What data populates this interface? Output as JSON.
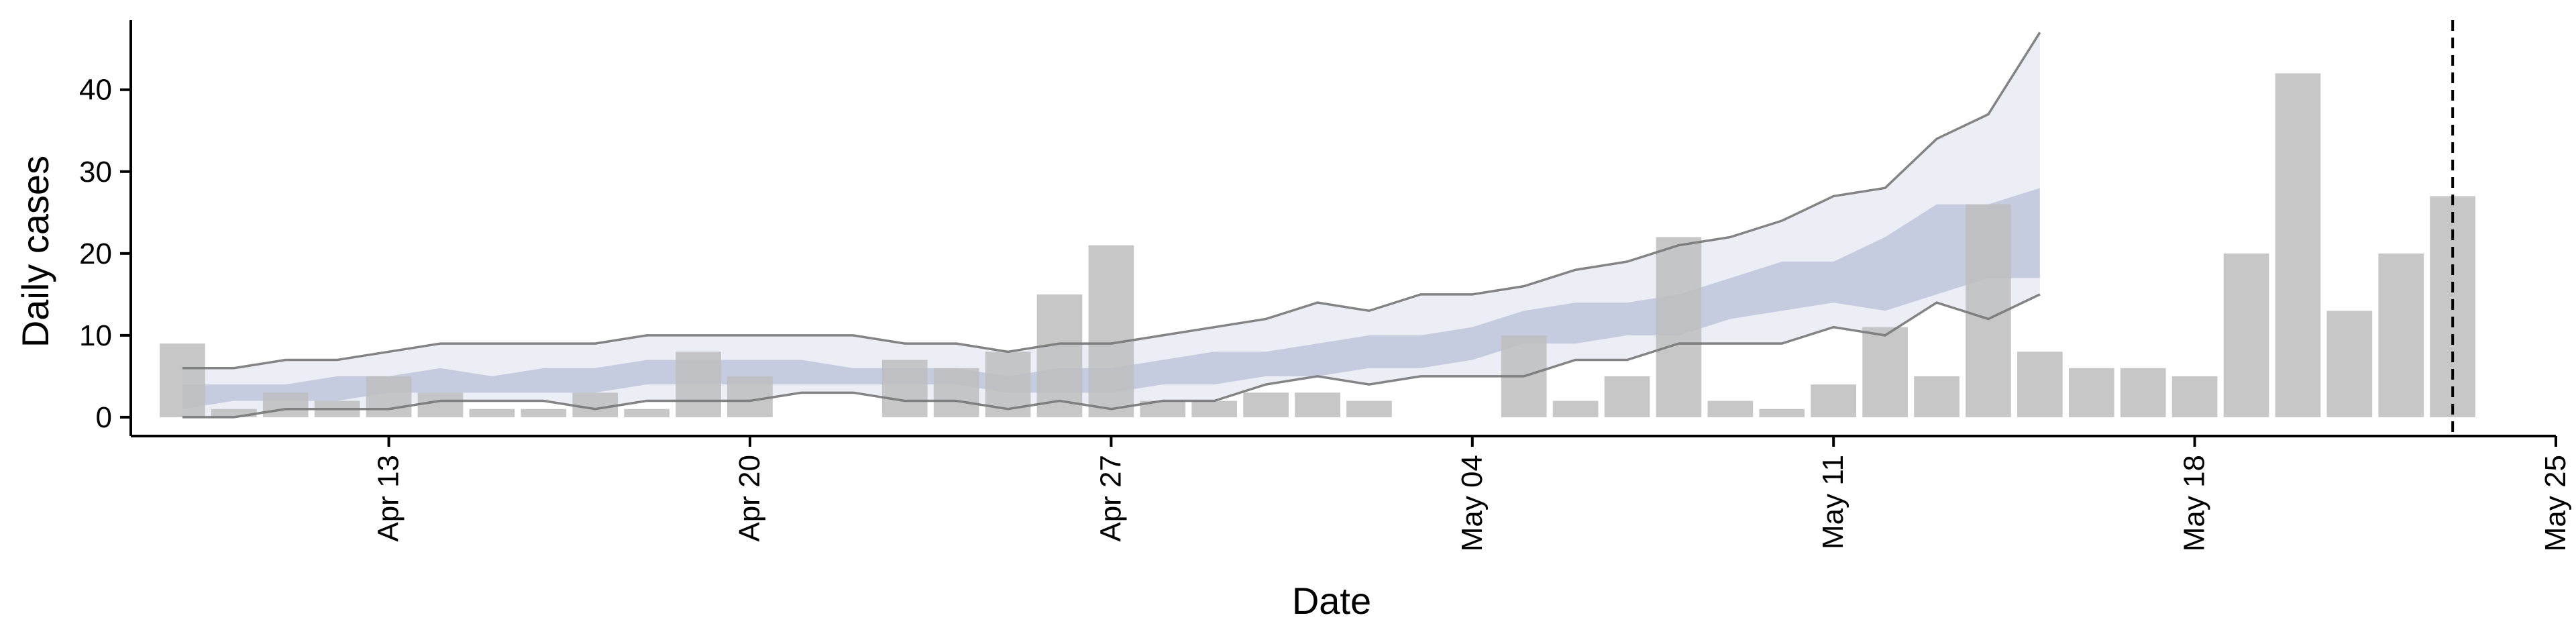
{
  "chart_data": {
    "type": "bar",
    "title": "",
    "xlabel": "Date",
    "ylabel": "Daily cases",
    "ylim": [
      0,
      50
    ],
    "xlim": [
      "2020-04-08",
      "2020-05-25"
    ],
    "x_tick_labels": [
      "Apr 13",
      "Apr 20",
      "Apr 27",
      "May 04",
      "May 11",
      "May 18",
      "May 25"
    ],
    "x_tick_dates": [
      "2020-04-13",
      "2020-04-20",
      "2020-04-27",
      "2020-05-04",
      "2020-05-11",
      "2020-05-18",
      "2020-05-25"
    ],
    "y_ticks": [
      0,
      10,
      20,
      30,
      40
    ],
    "grid": false,
    "bars": {
      "color": "#bdbdbd",
      "dates": [
        "2020-04-09",
        "2020-04-10",
        "2020-04-11",
        "2020-04-12",
        "2020-04-13",
        "2020-04-14",
        "2020-04-15",
        "2020-04-16",
        "2020-04-17",
        "2020-04-18",
        "2020-04-19",
        "2020-04-20",
        "2020-04-21",
        "2020-04-22",
        "2020-04-23",
        "2020-04-24",
        "2020-04-25",
        "2020-04-26",
        "2020-04-27",
        "2020-04-28",
        "2020-04-29",
        "2020-04-30",
        "2020-05-01",
        "2020-05-02",
        "2020-05-03",
        "2020-05-04",
        "2020-05-05",
        "2020-05-06",
        "2020-05-07",
        "2020-05-08",
        "2020-05-09",
        "2020-05-10",
        "2020-05-11",
        "2020-05-12",
        "2020-05-13",
        "2020-05-14",
        "2020-05-15",
        "2020-05-16",
        "2020-05-17",
        "2020-05-18",
        "2020-05-19",
        "2020-05-20",
        "2020-05-21",
        "2020-05-22",
        "2020-05-23"
      ],
      "values": [
        9,
        1,
        3,
        2,
        5,
        3,
        1,
        1,
        3,
        1,
        8,
        5,
        0,
        0,
        7,
        6,
        8,
        15,
        21,
        2,
        2,
        3,
        3,
        2,
        0,
        0,
        10,
        2,
        5,
        22,
        2,
        1,
        4,
        11,
        5,
        26,
        8,
        6,
        6,
        5,
        20,
        42,
        13,
        20,
        27
      ]
    },
    "bands": {
      "color": "#8895be",
      "dates": [
        "2020-04-09",
        "2020-04-10",
        "2020-04-11",
        "2020-04-12",
        "2020-04-13",
        "2020-04-14",
        "2020-04-15",
        "2020-04-16",
        "2020-04-17",
        "2020-04-18",
        "2020-04-19",
        "2020-04-20",
        "2020-04-21",
        "2020-04-22",
        "2020-04-23",
        "2020-04-24",
        "2020-04-25",
        "2020-04-26",
        "2020-04-27",
        "2020-04-28",
        "2020-04-29",
        "2020-04-30",
        "2020-05-01",
        "2020-05-02",
        "2020-05-03",
        "2020-05-04",
        "2020-05-05",
        "2020-05-06",
        "2020-05-07",
        "2020-05-08",
        "2020-05-09",
        "2020-05-10",
        "2020-05-11",
        "2020-05-12",
        "2020-05-13",
        "2020-05-14",
        "2020-05-15"
      ],
      "outer_upper": [
        6,
        6,
        7,
        7,
        8,
        9,
        9,
        9,
        9,
        10,
        10,
        10,
        10,
        10,
        9,
        9,
        8,
        9,
        9,
        10,
        11,
        12,
        14,
        13,
        15,
        15,
        16,
        18,
        19,
        21,
        22,
        24,
        27,
        28,
        34,
        37,
        47
      ],
      "outer_lower": [
        0,
        0,
        1,
        1,
        1,
        2,
        2,
        2,
        1,
        2,
        2,
        2,
        3,
        3,
        2,
        2,
        1,
        2,
        1,
        2,
        2,
        4,
        5,
        4,
        5,
        5,
        5,
        7,
        7,
        9,
        9,
        9,
        11,
        10,
        14,
        12,
        15
      ],
      "inner_upper": [
        4,
        4,
        4,
        5,
        5,
        6,
        5,
        6,
        6,
        7,
        7,
        7,
        7,
        6,
        6,
        6,
        5,
        6,
        6,
        7,
        8,
        8,
        9,
        10,
        10,
        11,
        13,
        14,
        14,
        15,
        17,
        19,
        19,
        22,
        26,
        26,
        28
      ],
      "inner_lower": [
        1,
        2,
        2,
        2,
        3,
        3,
        3,
        3,
        3,
        4,
        4,
        4,
        4,
        4,
        4,
        4,
        3,
        3,
        3,
        4,
        4,
        5,
        5,
        6,
        6,
        7,
        9,
        9,
        10,
        10,
        12,
        13,
        14,
        13,
        15,
        17,
        17
      ],
      "boundary_line_color": "#777777"
    },
    "vline": {
      "date": "2020-05-23",
      "style": "dashed",
      "color": "#000000"
    }
  }
}
